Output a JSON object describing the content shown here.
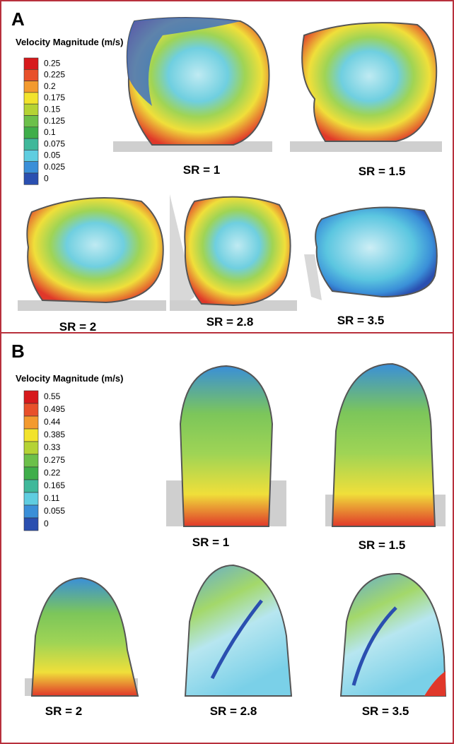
{
  "panels": [
    {
      "label": "A",
      "legend": {
        "title": "Velocity Magnitude (m/s)",
        "ticks": [
          0.25,
          0.225,
          0.2,
          0.175,
          0.15,
          0.125,
          0.1,
          0.075,
          0.05,
          0.025,
          0
        ]
      },
      "captions": [
        "SR = 1",
        "SR = 1.5",
        "SR = 2",
        "SR = 2.8",
        "SR = 3.5"
      ]
    },
    {
      "label": "B",
      "legend": {
        "title": "Velocity Magnitude (m/s)",
        "ticks": [
          0.55,
          0.495,
          0.44,
          0.385,
          0.33,
          0.275,
          0.22,
          0.165,
          0.11,
          0.055,
          0
        ]
      },
      "captions": [
        "SR = 1",
        "SR = 1.5",
        "SR = 2",
        "SR = 2.8",
        "SR = 3.5"
      ]
    }
  ]
}
